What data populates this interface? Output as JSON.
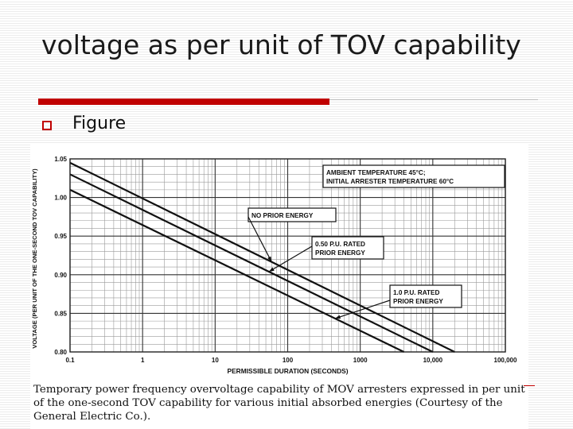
{
  "slide": {
    "title": "voltage as per unit of TOV capability",
    "bullet": "Figure"
  },
  "figure": {
    "caption": "Temporary power frequency overvoltage capability of MOV arresters expressed in per unit of the one-second TOV capability for various initial absorbed energies (Courtesy of the General Electric Co.).",
    "box_lines": [
      "AMBIENT TEMPERATURE 45°C;",
      "INITIAL ARRESTER TEMPERATURE 60°C"
    ]
  },
  "chart_data": {
    "type": "line",
    "xlabel": "PERMISSIBLE DURATION (SECONDS)",
    "ylabel": "VOLTAGE (PER UNIT OF THE ONE-SECOND TOV CAPABILITY)",
    "x_scale": "log",
    "xlim": [
      0.1,
      100000
    ],
    "ylim": [
      0.8,
      1.05
    ],
    "x_ticks": [
      "0.1",
      "1",
      "10",
      "100",
      "1000",
      "10,000",
      "100,000"
    ],
    "y_ticks": [
      "0.80",
      "0.85",
      "0.90",
      "0.95",
      "1.00",
      "1.05"
    ],
    "grid": true,
    "series": [
      {
        "name": "NO PRIOR ENERGY",
        "x": [
          0.1,
          20000
        ],
        "y": [
          1.045,
          0.8
        ]
      },
      {
        "name": "0.50 P.U. RATED PRIOR ENERGY",
        "x": [
          0.1,
          10000
        ],
        "y": [
          1.03,
          0.8
        ]
      },
      {
        "name": "1.0 P.U. RATED PRIOR ENERGY",
        "x": [
          0.1,
          4000
        ],
        "y": [
          1.01,
          0.8
        ]
      }
    ]
  }
}
